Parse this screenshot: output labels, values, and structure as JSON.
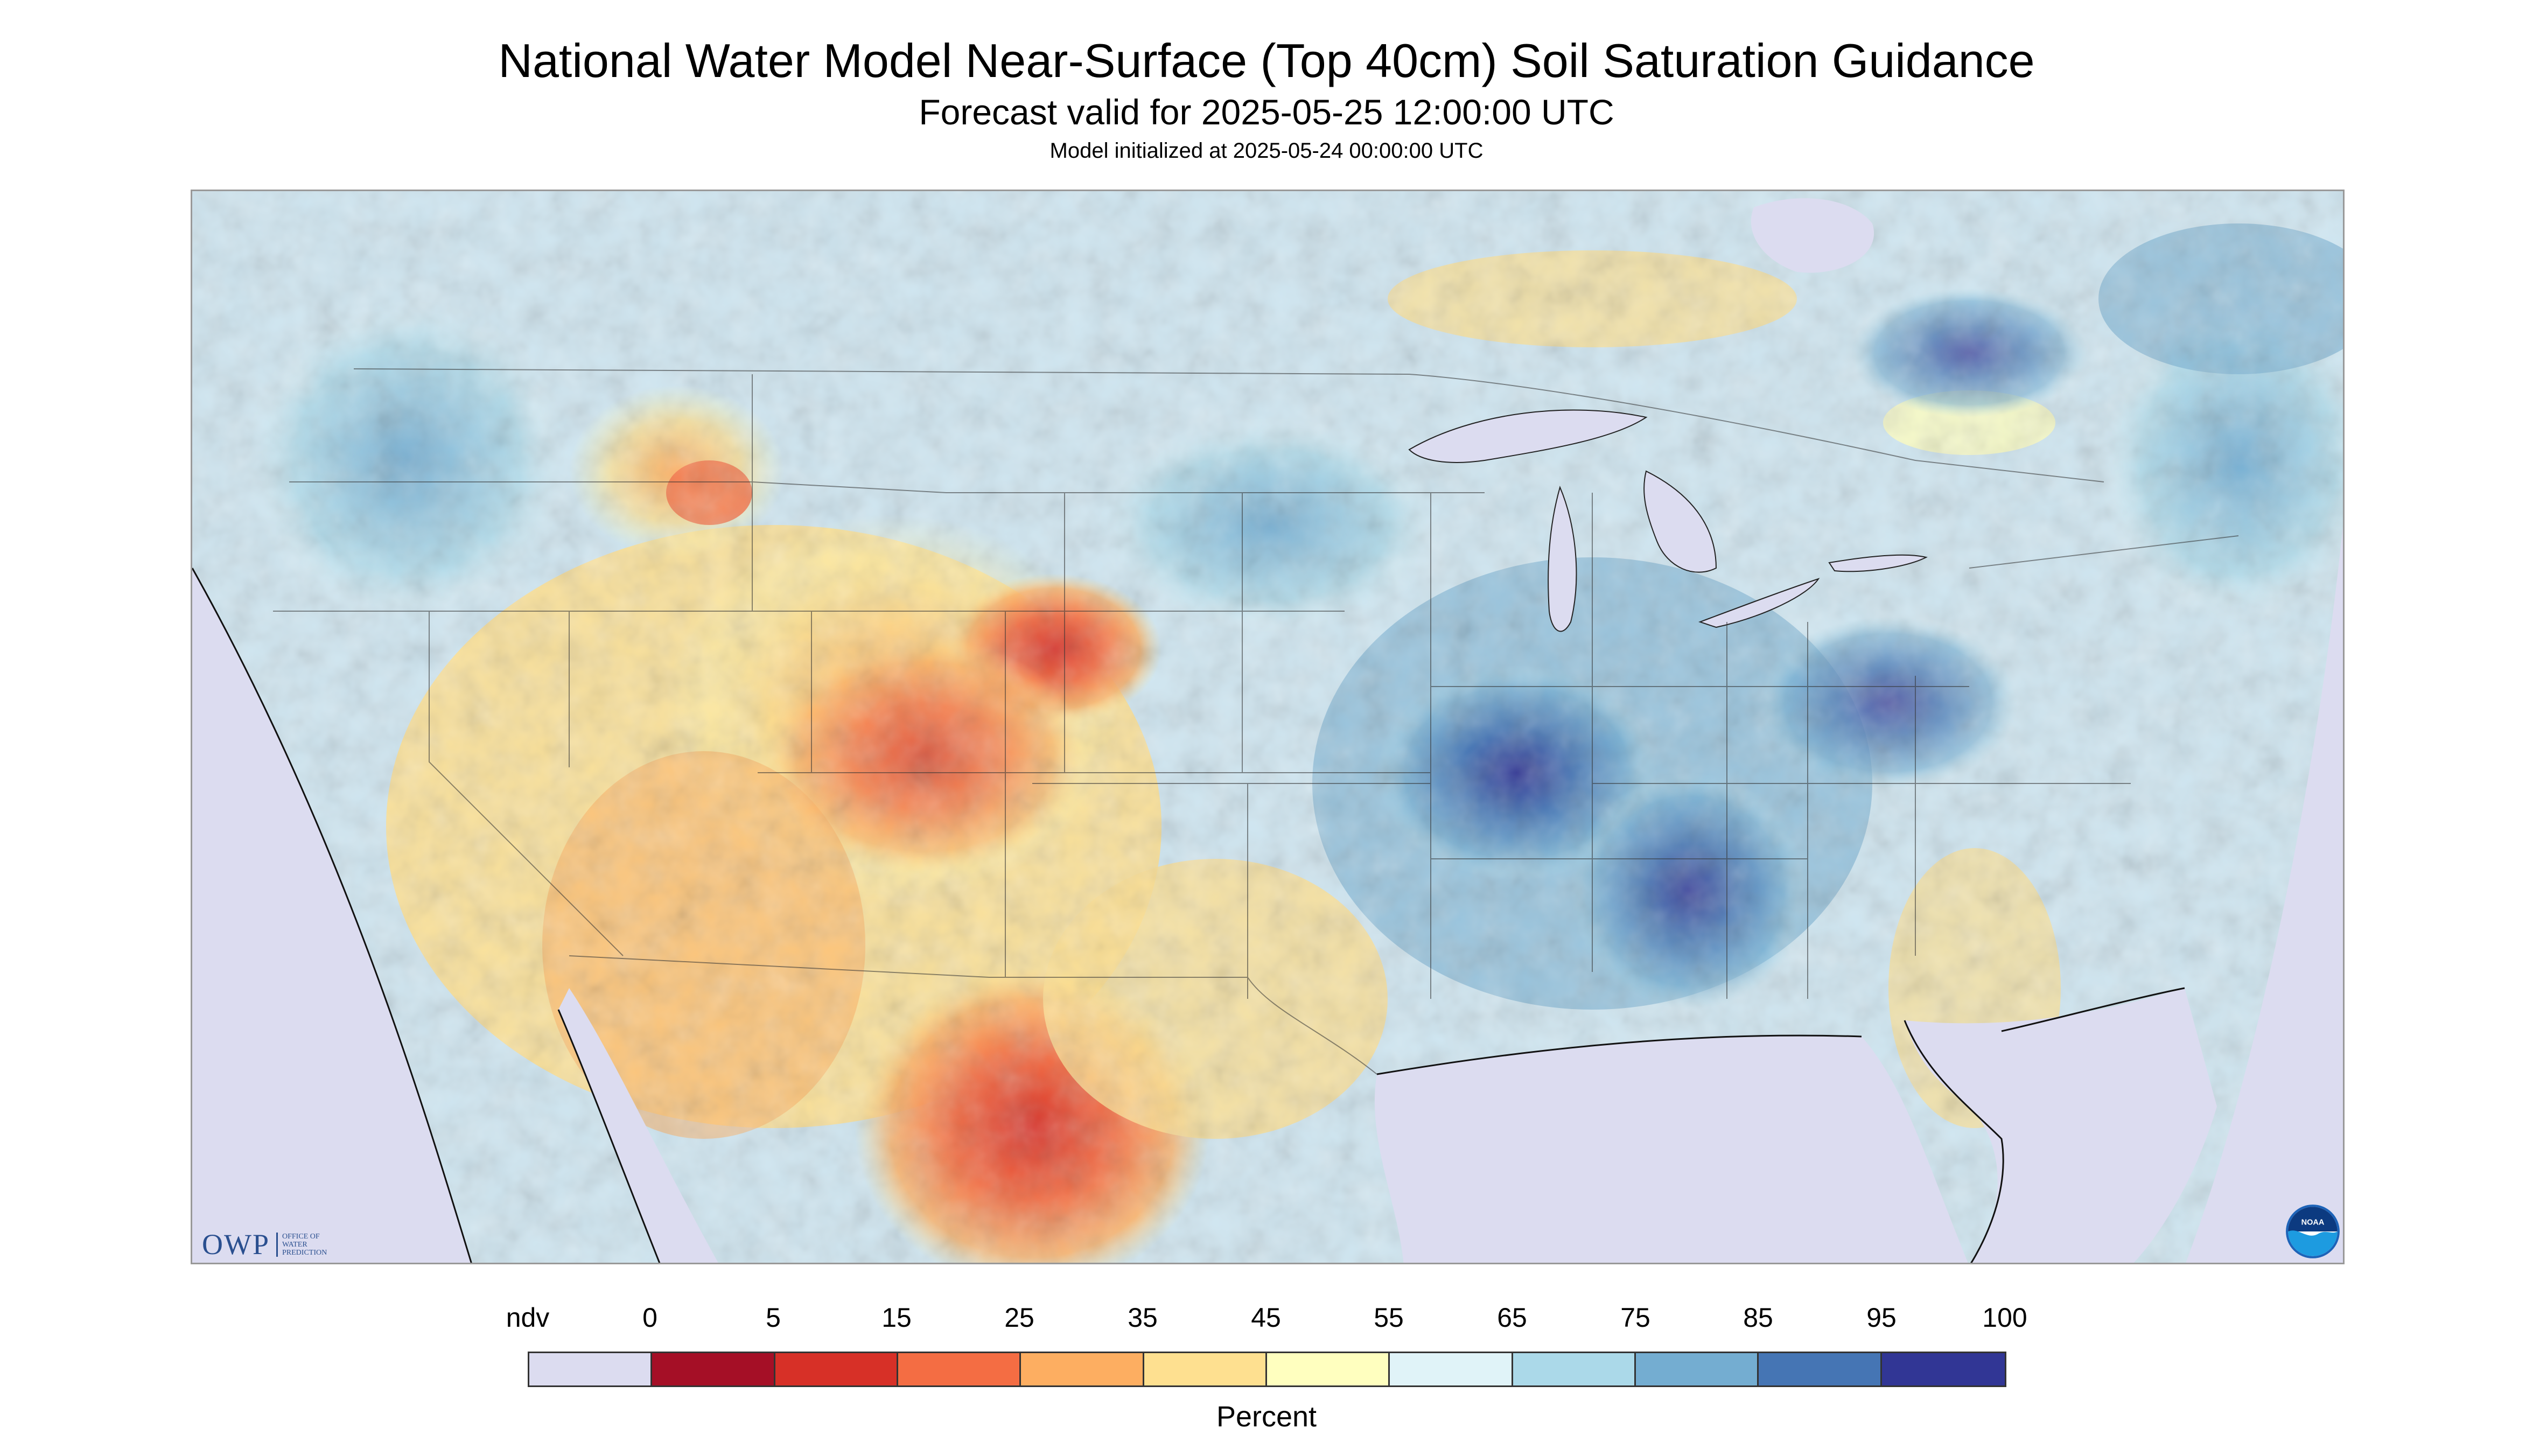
{
  "header": {
    "title": "National Water Model Near-Surface (Top 40cm) Soil Saturation Guidance",
    "subtitle": "Forecast valid for 2025-05-25 12:00:00 UTC",
    "init": "Model initialized at 2025-05-24 00:00:00 UTC"
  },
  "legend": {
    "unit_label": "Percent",
    "ticks": [
      "ndv",
      "0",
      "5",
      "15",
      "25",
      "35",
      "45",
      "55",
      "65",
      "75",
      "85",
      "95",
      "100"
    ],
    "bins": [
      {
        "range": "ndv",
        "color": "#dcdcf0"
      },
      {
        "range": "0-5",
        "color": "#a50f26"
      },
      {
        "range": "5-15",
        "color": "#d73027"
      },
      {
        "range": "15-25",
        "color": "#f46d43"
      },
      {
        "range": "25-35",
        "color": "#fdae61"
      },
      {
        "range": "35-45",
        "color": "#fee090"
      },
      {
        "range": "45-55",
        "color": "#ffffbf"
      },
      {
        "range": "55-65",
        "color": "#e0f3f8"
      },
      {
        "range": "65-75",
        "color": "#abd9e9"
      },
      {
        "range": "75-85",
        "color": "#74add1"
      },
      {
        "range": "85-95",
        "color": "#4575b4"
      },
      {
        "range": "95-100",
        "color": "#313695"
      }
    ]
  },
  "logos": {
    "owp_big": "OWP",
    "owp_small_1": "OFFICE OF",
    "owp_small_2": "WATER",
    "owp_small_3": "PREDICTION",
    "noaa": "NOAA"
  },
  "colors": {
    "water": "#dcdcf0",
    "background_land": "#dcecf5"
  }
}
